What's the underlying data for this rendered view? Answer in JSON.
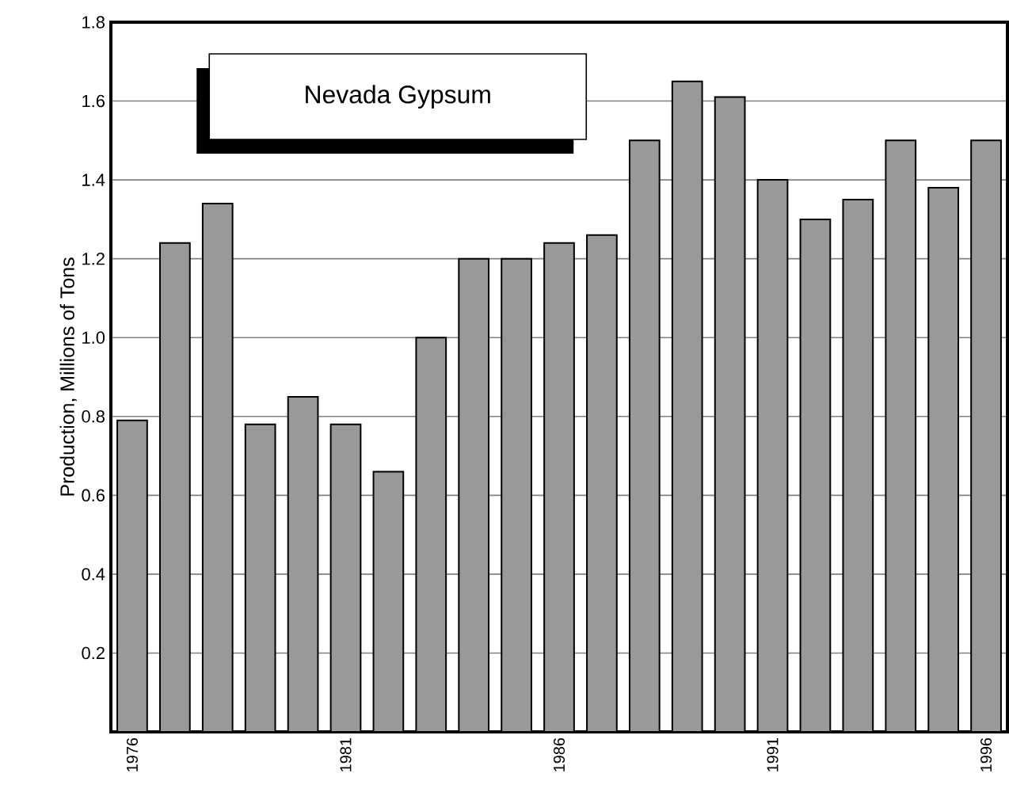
{
  "chart_data": {
    "type": "bar",
    "title": "Nevada  Gypsum",
    "ylabel": "Production,  Millions of  Tons",
    "categories": [
      "1976",
      null,
      null,
      null,
      null,
      "1981",
      null,
      null,
      null,
      null,
      "1986",
      null,
      null,
      null,
      null,
      "1991",
      null,
      null,
      null,
      null,
      "1996"
    ],
    "values": [
      0.79,
      1.24,
      1.34,
      0.78,
      0.85,
      0.78,
      0.66,
      1.0,
      1.2,
      1.2,
      1.24,
      1.26,
      1.5,
      1.65,
      1.61,
      1.4,
      1.3,
      1.35,
      1.5,
      1.38,
      1.5
    ],
    "color": "#999999",
    "ylim": [
      0,
      1.8
    ],
    "yticks": [
      0.2,
      0.4,
      0.6,
      0.8,
      {
        "value": 1.0,
        "label": "1.0"
      },
      1.2,
      1.4,
      1.6,
      1.8
    ],
    "grid": "y"
  }
}
